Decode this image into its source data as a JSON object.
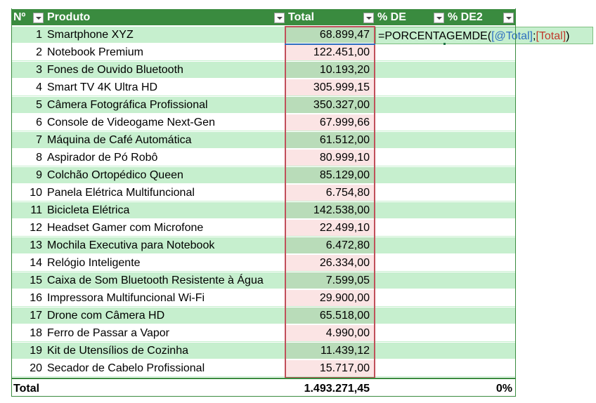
{
  "header": {
    "no": "Nº",
    "produto": "Produto",
    "total": "Total",
    "de": "% DE",
    "de2": "% DE2"
  },
  "rows": [
    {
      "n": "1",
      "p": "Smartphone XYZ",
      "t": "68.899,47"
    },
    {
      "n": "2",
      "p": "Notebook Premium",
      "t": "122.451,00"
    },
    {
      "n": "3",
      "p": "Fones de Ouvido Bluetooth",
      "t": "10.193,20"
    },
    {
      "n": "4",
      "p": "Smart TV 4K Ultra HD",
      "t": "305.999,15"
    },
    {
      "n": "5",
      "p": "Câmera Fotográfica Profissional",
      "t": "350.327,00"
    },
    {
      "n": "6",
      "p": "Console de Videogame Next-Gen",
      "t": "67.999,66"
    },
    {
      "n": "7",
      "p": "Máquina de Café Automática",
      "t": "61.512,00"
    },
    {
      "n": "8",
      "p": "Aspirador de Pó Robô",
      "t": "80.999,10"
    },
    {
      "n": "9",
      "p": "Colchão Ortopédico Queen",
      "t": "85.129,00"
    },
    {
      "n": "10",
      "p": "Panela Elétrica Multifuncional",
      "t": "6.754,80"
    },
    {
      "n": "11",
      "p": "Bicicleta Elétrica",
      "t": "142.538,00"
    },
    {
      "n": "12",
      "p": "Headset Gamer com Microfone",
      "t": "22.499,10"
    },
    {
      "n": "13",
      "p": "Mochila Executiva para Notebook",
      "t": "6.472,80"
    },
    {
      "n": "14",
      "p": "Relógio Inteligente",
      "t": "26.334,00"
    },
    {
      "n": "15",
      "p": "Caixa de Som Bluetooth Resistente à Água",
      "t": "7.599,05"
    },
    {
      "n": "16",
      "p": "Impressora Multifuncional Wi-Fi",
      "t": "29.900,00"
    },
    {
      "n": "17",
      "p": "Drone com Câmera HD",
      "t": "65.518,00"
    },
    {
      "n": "18",
      "p": "Ferro de Passar a Vapor",
      "t": "4.990,00"
    },
    {
      "n": "19",
      "p": "Kit de Utensílios de Cozinha",
      "t": "11.439,12"
    },
    {
      "n": "20",
      "p": "Secador de Cabelo Profissional",
      "t": "15.717,00"
    }
  ],
  "formula": {
    "prefix": "=PORCENTAGEMDE(",
    "ref1": "[@Total]",
    "sep": ";",
    "ref2": "[Total]",
    "suffix": ")"
  },
  "totals": {
    "label": "Total",
    "total": "1.493.271,45",
    "de2": "0%"
  },
  "colors": {
    "header": "#3a8b3f",
    "band": "#c6efce",
    "outline": "#c0505a"
  }
}
